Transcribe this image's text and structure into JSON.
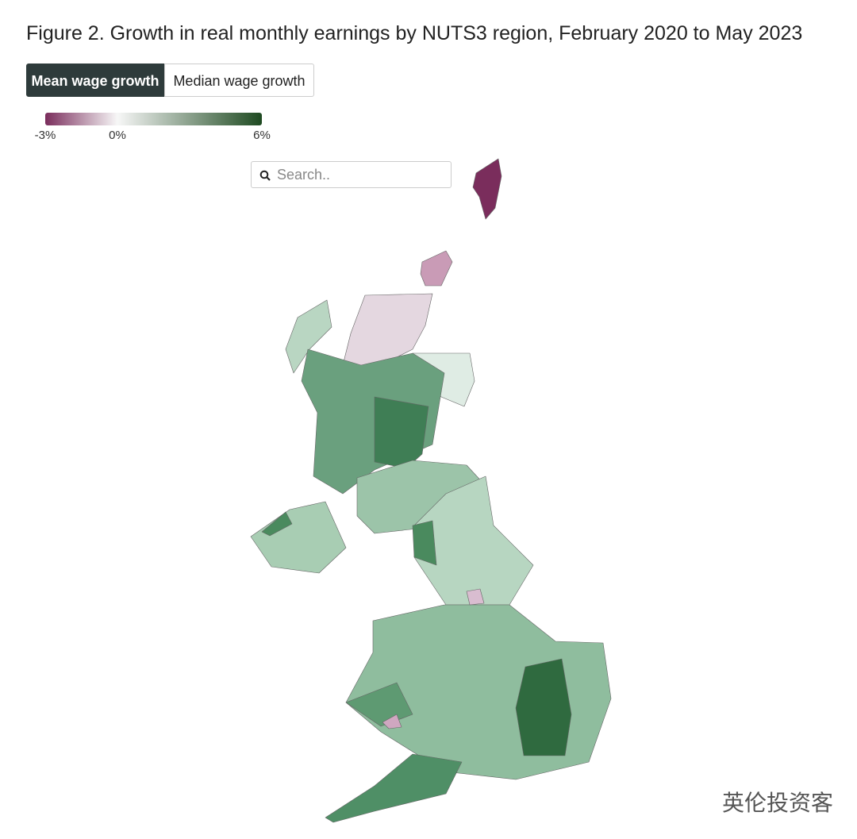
{
  "header": {
    "title": "Figure 2. Growth in real monthly earnings by NUTS3 region, February 2020 to May 2023"
  },
  "tabs": [
    {
      "label": "Mean wage growth",
      "active": true
    },
    {
      "label": "Median wage growth",
      "active": false
    }
  ],
  "legend": {
    "range": [
      -3,
      6
    ],
    "stops": [
      {
        "value": -3,
        "color": "#7a2d5c"
      },
      {
        "value": 0,
        "color": "#f7f7f7"
      },
      {
        "value": 6,
        "color": "#1e4a21"
      }
    ],
    "ticks": [
      {
        "value": -3,
        "label": "-3%"
      },
      {
        "value": 0,
        "label": "0%"
      },
      {
        "value": 6,
        "label": "6%"
      }
    ]
  },
  "search": {
    "placeholder": "Search.."
  },
  "watermark": "英伦投资客"
}
